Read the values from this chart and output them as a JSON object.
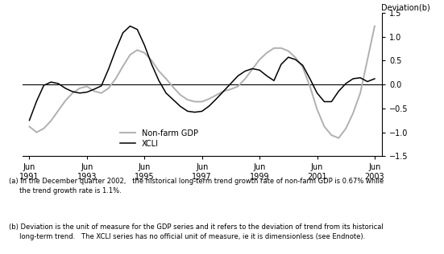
{
  "ylabel": "Deviation(b)",
  "ylim": [
    -1.5,
    1.5
  ],
  "yticks": [
    -1.5,
    -1.0,
    -0.5,
    0.0,
    0.5,
    1.0,
    1.5
  ],
  "xtick_years": [
    1991,
    1993,
    1995,
    1997,
    1999,
    2001,
    2003
  ],
  "xcli_color": "#000000",
  "gdp_color": "#b0b0b0",
  "zero_line_color": "#000000",
  "footnote_a": "(a) In the December quarter 2002,   the historical long-term trend growth rate of non-farm GDP is 0.67% while\n     the trend growth rate is 1.1%.",
  "footnote_b": "(b) Deviation is the unit of measure for the GDP series and it refers to the deviation of trend from its historical\n     long-term trend.   The XCLI series has no official unit of measure, ie it is dimensionless (see Endnote).",
  "xcli_x": [
    1991.5,
    1991.75,
    1992.0,
    1992.25,
    1992.5,
    1992.75,
    1993.0,
    1993.25,
    1993.5,
    1993.75,
    1994.0,
    1994.25,
    1994.5,
    1994.75,
    1995.0,
    1995.25,
    1995.5,
    1995.75,
    1996.0,
    1996.25,
    1996.5,
    1996.75,
    1997.0,
    1997.25,
    1997.5,
    1997.75,
    1998.0,
    1998.25,
    1998.5,
    1998.75,
    1999.0,
    1999.25,
    1999.5,
    1999.75,
    2000.0,
    2000.25,
    2000.5,
    2000.75,
    2001.0,
    2001.25,
    2001.5,
    2001.75,
    2002.0,
    2002.25,
    2002.5,
    2002.75,
    2003.0,
    2003.25,
    2003.5
  ],
  "xcli_y": [
    -0.75,
    -0.35,
    -0.02,
    0.05,
    0.02,
    -0.08,
    -0.15,
    -0.18,
    -0.16,
    -0.1,
    -0.03,
    0.32,
    0.72,
    1.08,
    1.22,
    1.15,
    0.82,
    0.42,
    0.08,
    -0.18,
    -0.32,
    -0.46,
    -0.56,
    -0.58,
    -0.56,
    -0.45,
    -0.3,
    -0.14,
    0.02,
    0.18,
    0.28,
    0.33,
    0.3,
    0.18,
    0.08,
    0.42,
    0.57,
    0.52,
    0.4,
    0.12,
    -0.18,
    -0.36,
    -0.36,
    -0.14,
    0.02,
    0.12,
    0.14,
    0.06,
    0.12
  ],
  "gdp_x": [
    1991.5,
    1991.75,
    1992.0,
    1992.25,
    1992.5,
    1992.75,
    1993.0,
    1993.25,
    1993.5,
    1993.75,
    1994.0,
    1994.25,
    1994.5,
    1994.75,
    1995.0,
    1995.25,
    1995.5,
    1995.75,
    1996.0,
    1996.25,
    1996.5,
    1996.75,
    1997.0,
    1997.25,
    1997.5,
    1997.75,
    1998.0,
    1998.25,
    1998.5,
    1998.75,
    1999.0,
    1999.25,
    1999.5,
    1999.75,
    2000.0,
    2000.25,
    2000.5,
    2000.75,
    2001.0,
    2001.25,
    2001.5,
    2001.75,
    2002.0,
    2002.25,
    2002.5,
    2002.75,
    2003.0,
    2003.25,
    2003.5
  ],
  "gdp_y": [
    -0.88,
    -1.0,
    -0.92,
    -0.76,
    -0.55,
    -0.34,
    -0.18,
    -0.08,
    -0.04,
    -0.14,
    -0.18,
    -0.08,
    0.12,
    0.38,
    0.62,
    0.72,
    0.66,
    0.5,
    0.28,
    0.12,
    -0.06,
    -0.22,
    -0.32,
    -0.36,
    -0.36,
    -0.3,
    -0.22,
    -0.14,
    -0.1,
    -0.04,
    0.12,
    0.32,
    0.52,
    0.66,
    0.76,
    0.76,
    0.7,
    0.56,
    0.36,
    -0.04,
    -0.52,
    -0.88,
    -1.06,
    -1.12,
    -0.92,
    -0.6,
    -0.18,
    0.52,
    1.22
  ]
}
